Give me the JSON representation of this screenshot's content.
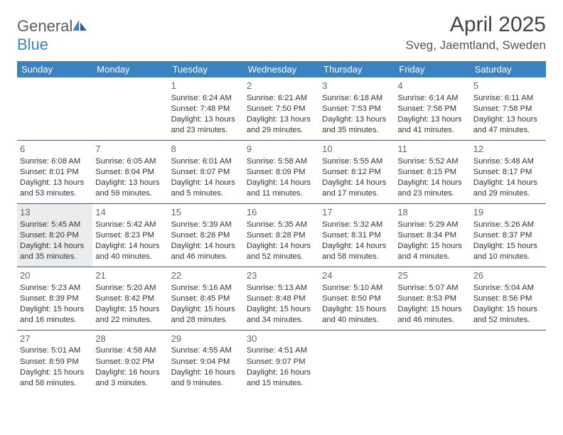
{
  "brand": {
    "part1": "General",
    "part2": "Blue"
  },
  "title": "April 2025",
  "location": "Sveg, Jaemtland, Sweden",
  "colors": {
    "header_bg": "#3b83c0",
    "header_fg": "#ffffff",
    "row_border": "#2c5f8d",
    "shaded_bg": "#ececec",
    "text": "#333333",
    "title_color": "#444444"
  },
  "day_headers": [
    "Sunday",
    "Monday",
    "Tuesday",
    "Wednesday",
    "Thursday",
    "Friday",
    "Saturday"
  ],
  "weeks": [
    [
      null,
      null,
      {
        "n": "1",
        "sr": "6:24 AM",
        "ss": "7:48 PM",
        "dl": "13 hours and 23 minutes."
      },
      {
        "n": "2",
        "sr": "6:21 AM",
        "ss": "7:50 PM",
        "dl": "13 hours and 29 minutes."
      },
      {
        "n": "3",
        "sr": "6:18 AM",
        "ss": "7:53 PM",
        "dl": "13 hours and 35 minutes."
      },
      {
        "n": "4",
        "sr": "6:14 AM",
        "ss": "7:56 PM",
        "dl": "13 hours and 41 minutes."
      },
      {
        "n": "5",
        "sr": "6:11 AM",
        "ss": "7:58 PM",
        "dl": "13 hours and 47 minutes."
      }
    ],
    [
      {
        "n": "6",
        "sr": "6:08 AM",
        "ss": "8:01 PM",
        "dl": "13 hours and 53 minutes."
      },
      {
        "n": "7",
        "sr": "6:05 AM",
        "ss": "8:04 PM",
        "dl": "13 hours and 59 minutes."
      },
      {
        "n": "8",
        "sr": "6:01 AM",
        "ss": "8:07 PM",
        "dl": "14 hours and 5 minutes."
      },
      {
        "n": "9",
        "sr": "5:58 AM",
        "ss": "8:09 PM",
        "dl": "14 hours and 11 minutes."
      },
      {
        "n": "10",
        "sr": "5:55 AM",
        "ss": "8:12 PM",
        "dl": "14 hours and 17 minutes."
      },
      {
        "n": "11",
        "sr": "5:52 AM",
        "ss": "8:15 PM",
        "dl": "14 hours and 23 minutes."
      },
      {
        "n": "12",
        "sr": "5:48 AM",
        "ss": "8:17 PM",
        "dl": "14 hours and 29 minutes."
      }
    ],
    [
      {
        "n": "13",
        "sr": "5:45 AM",
        "ss": "8:20 PM",
        "dl": "14 hours and 35 minutes.",
        "shaded": true
      },
      {
        "n": "14",
        "sr": "5:42 AM",
        "ss": "8:23 PM",
        "dl": "14 hours and 40 minutes."
      },
      {
        "n": "15",
        "sr": "5:39 AM",
        "ss": "8:26 PM",
        "dl": "14 hours and 46 minutes."
      },
      {
        "n": "16",
        "sr": "5:35 AM",
        "ss": "8:28 PM",
        "dl": "14 hours and 52 minutes."
      },
      {
        "n": "17",
        "sr": "5:32 AM",
        "ss": "8:31 PM",
        "dl": "14 hours and 58 minutes."
      },
      {
        "n": "18",
        "sr": "5:29 AM",
        "ss": "8:34 PM",
        "dl": "15 hours and 4 minutes."
      },
      {
        "n": "19",
        "sr": "5:26 AM",
        "ss": "8:37 PM",
        "dl": "15 hours and 10 minutes."
      }
    ],
    [
      {
        "n": "20",
        "sr": "5:23 AM",
        "ss": "8:39 PM",
        "dl": "15 hours and 16 minutes."
      },
      {
        "n": "21",
        "sr": "5:20 AM",
        "ss": "8:42 PM",
        "dl": "15 hours and 22 minutes."
      },
      {
        "n": "22",
        "sr": "5:16 AM",
        "ss": "8:45 PM",
        "dl": "15 hours and 28 minutes."
      },
      {
        "n": "23",
        "sr": "5:13 AM",
        "ss": "8:48 PM",
        "dl": "15 hours and 34 minutes."
      },
      {
        "n": "24",
        "sr": "5:10 AM",
        "ss": "8:50 PM",
        "dl": "15 hours and 40 minutes."
      },
      {
        "n": "25",
        "sr": "5:07 AM",
        "ss": "8:53 PM",
        "dl": "15 hours and 46 minutes."
      },
      {
        "n": "26",
        "sr": "5:04 AM",
        "ss": "8:56 PM",
        "dl": "15 hours and 52 minutes."
      }
    ],
    [
      {
        "n": "27",
        "sr": "5:01 AM",
        "ss": "8:59 PM",
        "dl": "15 hours and 58 minutes."
      },
      {
        "n": "28",
        "sr": "4:58 AM",
        "ss": "9:02 PM",
        "dl": "16 hours and 3 minutes."
      },
      {
        "n": "29",
        "sr": "4:55 AM",
        "ss": "9:04 PM",
        "dl": "16 hours and 9 minutes."
      },
      {
        "n": "30",
        "sr": "4:51 AM",
        "ss": "9:07 PM",
        "dl": "16 hours and 15 minutes."
      },
      null,
      null,
      null
    ]
  ],
  "labels": {
    "sunrise": "Sunrise:",
    "sunset": "Sunset:",
    "daylight": "Daylight:"
  }
}
